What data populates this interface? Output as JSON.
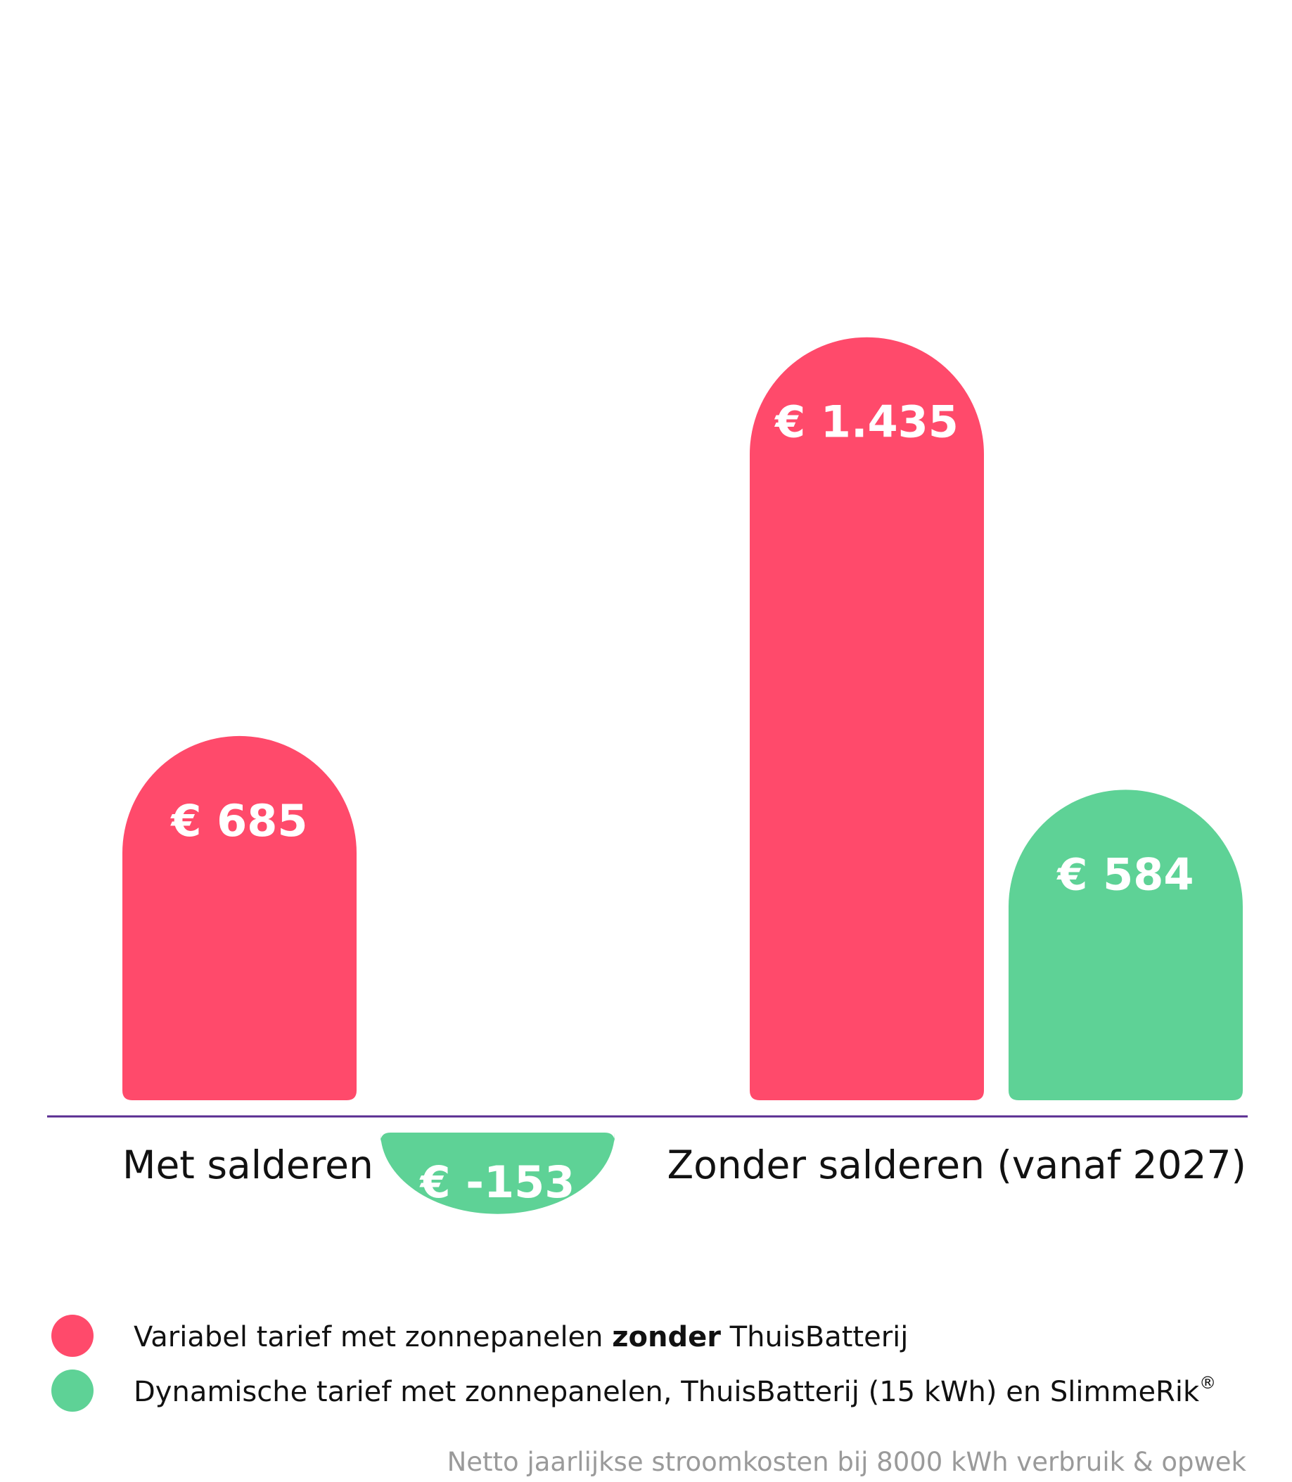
{
  "chart_data": {
    "type": "bar",
    "categories": [
      "Met salderen",
      "Zonder salderen (vanaf 2027)"
    ],
    "series": [
      {
        "name_parts": [
          "Variabel tarief met zonnepanelen ",
          "zonder",
          " ThuisBatterij"
        ],
        "color": "#ff4a6b",
        "values": [
          685,
          1435
        ],
        "labels": [
          "€ 685",
          "€ 1.435"
        ]
      },
      {
        "name_parts": [
          "Dynamische tarief met zonnepanelen, ThuisBatterij (15 kWh) en SlimmeRik",
          "®"
        ],
        "color": "#5ed296",
        "values": [
          -153,
          584
        ],
        "labels": [
          "€ -153",
          "€ 584"
        ]
      }
    ],
    "axis_color": "#5a2d91",
    "footnote": "Netto jaarlijkse stroomkosten bij 8000 kWh verbruik & opwek",
    "grid": false,
    "legend_position": "bottom-left"
  }
}
